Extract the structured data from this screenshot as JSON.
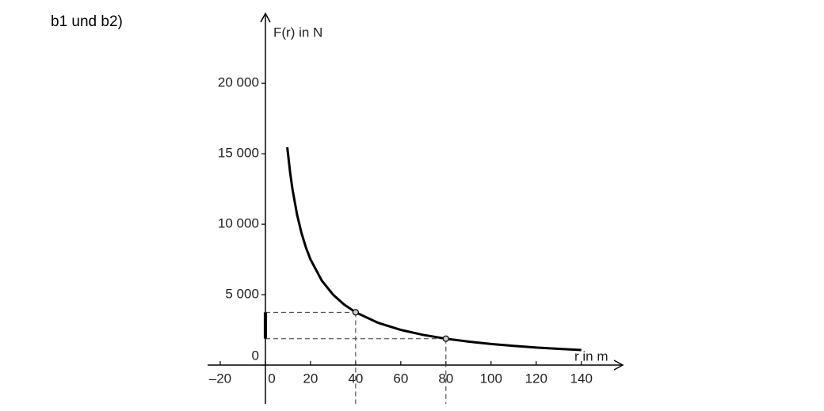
{
  "chart_data": {
    "type": "line",
    "title": "b1 und b2)",
    "x_label": "r in m",
    "y_label": "F(r) in N",
    "x": [
      9.7,
      11,
      12,
      14,
      16,
      18,
      20,
      25,
      30,
      35,
      40,
      50,
      60,
      70,
      80,
      90,
      100,
      110,
      120,
      130,
      140
    ],
    "series": [
      {
        "name": "F",
        "color": "#000000",
        "values": [
          15464,
          13636,
          12500,
          10714,
          9375,
          8333,
          7500,
          6000,
          5000,
          4286,
          3750,
          3000,
          2500,
          2143,
          1875,
          1667,
          1500,
          1364,
          1250,
          1154,
          1071
        ]
      }
    ],
    "marked_points": {
      "x": [
        40,
        80
      ],
      "y": [
        3750,
        1875
      ]
    },
    "xlim": [
      -25.6,
      158
    ],
    "ylim": [
      -2750,
      24900
    ],
    "xticks": [
      {
        "value": -20,
        "label": "–20"
      },
      0,
      20,
      40,
      60,
      80,
      100,
      120,
      140
    ],
    "yticks": [
      0,
      {
        "value": 5000,
        "label": "5 000"
      },
      {
        "value": 10000,
        "label": "10 000"
      },
      {
        "value": 15000,
        "label": "15 000"
      },
      {
        "value": 20000,
        "label": "20 000"
      }
    ],
    "grid": false
  }
}
